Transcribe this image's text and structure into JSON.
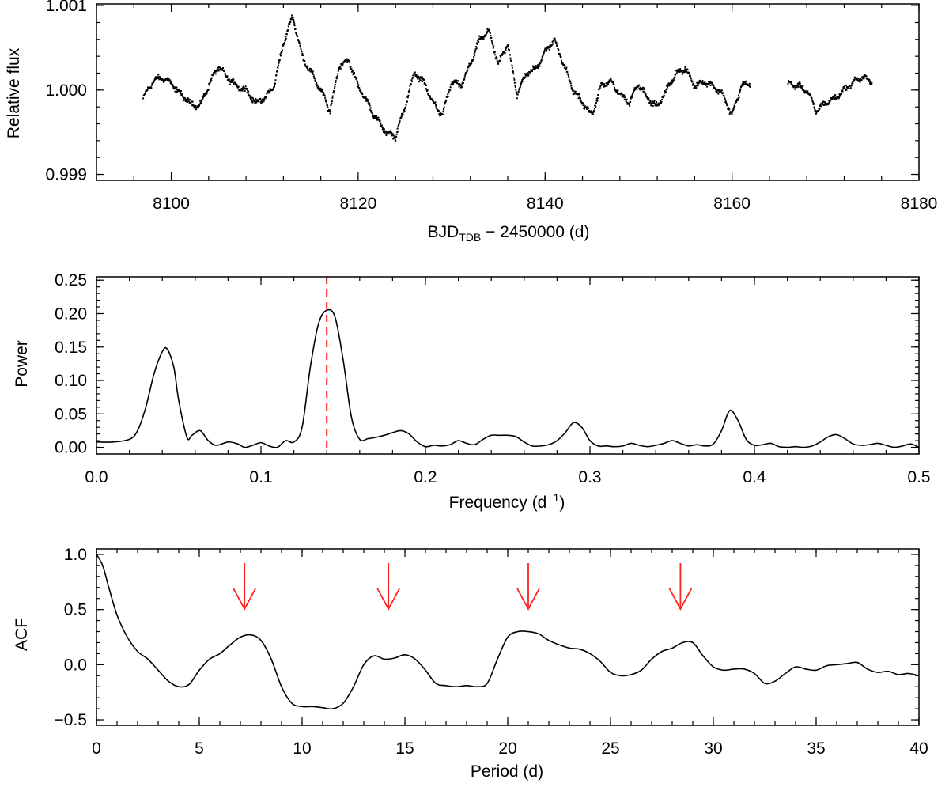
{
  "chart_data": [
    {
      "type": "scatter",
      "id": "lightcurve",
      "title": "",
      "xlabel_main": "BJD",
      "xlabel_sub": "TDB",
      "xlabel_rest": " − 2450000 (d)",
      "ylabel": "Relative flux",
      "xlim": [
        8092,
        8180
      ],
      "ylim": [
        0.99893,
        1.00102
      ],
      "xticks": [
        8100,
        8120,
        8140,
        8160,
        8180
      ],
      "xtick_labels": [
        "8100",
        "8120",
        "8140",
        "8160",
        "8180"
      ],
      "yticks": [
        0.999,
        1.0,
        1.001
      ],
      "ytick_labels": [
        "0.999",
        "1.000",
        "1.001"
      ],
      "gap": [
        8162,
        8166
      ],
      "trend_x": [
        8097,
        8098,
        8099,
        8100,
        8101,
        8102,
        8103,
        8104,
        8105,
        8106,
        8107,
        8108,
        8109,
        8110,
        8111,
        8112,
        8113,
        8114,
        8115,
        8116,
        8117,
        8118,
        8119,
        8120,
        8121,
        8122,
        8123,
        8124,
        8125,
        8126,
        8127,
        8128,
        8129,
        8130,
        8131,
        8132,
        8133,
        8134,
        8135,
        8136,
        8137,
        8138,
        8139,
        8140,
        8141,
        8142,
        8143,
        8144,
        8145,
        8146,
        8147,
        8148,
        8149,
        8150,
        8151,
        8152,
        8153,
        8154,
        8155,
        8156,
        8157,
        8158,
        8159,
        8160,
        8161,
        8162,
        8166,
        8167,
        8168,
        8169,
        8170,
        8171,
        8172,
        8173,
        8174,
        8175
      ],
      "trend_y": [
        0.9999,
        1.0001,
        1.00015,
        1.00008,
        0.99995,
        0.99985,
        0.9998,
        1.00005,
        1.00028,
        1.00015,
        1.00005,
        1.0,
        0.99985,
        0.9999,
        1.00005,
        1.00055,
        1.00088,
        1.0004,
        1.0002,
        1.0,
        0.99975,
        1.0003,
        1.00035,
        1.00005,
        0.99985,
        0.99965,
        0.9995,
        0.99945,
        0.9998,
        1.0002,
        1.0001,
        0.99985,
        0.9997,
        1.0001,
        1.00005,
        1.0003,
        1.0006,
        1.0007,
        1.0003,
        1.00055,
        0.99995,
        1.0002,
        1.00025,
        1.00045,
        1.0006,
        1.0003,
        1.0,
        0.99985,
        0.9997,
        1.00005,
        1.0001,
        0.99995,
        0.99985,
        1.00008,
        0.9999,
        0.9998,
        1.0,
        1.0002,
        1.00025,
        1.00005,
        1.0001,
        1.00005,
        0.99995,
        0.9997,
        1.00005,
        1.00008,
        1.00008,
        1.00005,
        1.0,
        0.99975,
        0.99985,
        0.9999,
        1.0,
        1.0001,
        1.00015,
        1.0001
      ],
      "points_per_day": 24,
      "scatter_amplitude": 4e-05
    },
    {
      "type": "line",
      "id": "periodogram",
      "title": "",
      "xlabel": "Frequency (d",
      "xlabel_exp": "−1",
      "xlabel_close": ")",
      "ylabel": "Power",
      "xlim": [
        0.0,
        0.5
      ],
      "ylim": [
        -0.01,
        0.255
      ],
      "xticks": [
        0.0,
        0.1,
        0.2,
        0.3,
        0.4,
        0.5
      ],
      "xtick_labels": [
        "0.0",
        "0.1",
        "0.2",
        "0.3",
        "0.4",
        "0.5"
      ],
      "yticks": [
        0.0,
        0.05,
        0.1,
        0.15,
        0.2,
        0.25
      ],
      "ytick_labels": [
        "0.00",
        "0.05",
        "0.10",
        "0.15",
        "0.20",
        "0.25"
      ],
      "peak_marker_x": 0.14,
      "x": [
        0.0,
        0.01,
        0.02,
        0.025,
        0.03,
        0.035,
        0.04,
        0.043,
        0.047,
        0.05,
        0.055,
        0.058,
        0.063,
        0.068,
        0.073,
        0.08,
        0.086,
        0.09,
        0.095,
        0.1,
        0.105,
        0.11,
        0.115,
        0.12,
        0.125,
        0.13,
        0.135,
        0.14,
        0.145,
        0.15,
        0.155,
        0.16,
        0.165,
        0.17,
        0.175,
        0.18,
        0.185,
        0.19,
        0.195,
        0.2,
        0.205,
        0.21,
        0.215,
        0.22,
        0.225,
        0.23,
        0.235,
        0.24,
        0.245,
        0.25,
        0.255,
        0.26,
        0.265,
        0.27,
        0.275,
        0.28,
        0.285,
        0.29,
        0.295,
        0.3,
        0.305,
        0.31,
        0.315,
        0.32,
        0.325,
        0.33,
        0.335,
        0.34,
        0.345,
        0.35,
        0.355,
        0.36,
        0.365,
        0.37,
        0.375,
        0.38,
        0.385,
        0.39,
        0.395,
        0.4,
        0.405,
        0.41,
        0.415,
        0.42,
        0.425,
        0.43,
        0.435,
        0.44,
        0.445,
        0.45,
        0.455,
        0.46,
        0.465,
        0.47,
        0.475,
        0.48,
        0.485,
        0.49,
        0.495,
        0.5
      ],
      "y": [
        0.008,
        0.008,
        0.012,
        0.025,
        0.06,
        0.11,
        0.143,
        0.147,
        0.12,
        0.07,
        0.015,
        0.018,
        0.025,
        0.01,
        0.003,
        0.008,
        0.005,
        0.0,
        0.003,
        0.007,
        0.002,
        0.0,
        0.01,
        0.008,
        0.03,
        0.12,
        0.185,
        0.205,
        0.195,
        0.13,
        0.045,
        0.012,
        0.013,
        0.015,
        0.018,
        0.022,
        0.025,
        0.02,
        0.008,
        0.001,
        0.003,
        0.002,
        0.004,
        0.01,
        0.006,
        0.004,
        0.012,
        0.018,
        0.018,
        0.018,
        0.016,
        0.008,
        0.002,
        0.002,
        0.004,
        0.01,
        0.022,
        0.037,
        0.03,
        0.01,
        0.002,
        0.002,
        0.001,
        0.002,
        0.006,
        0.003,
        0.001,
        0.003,
        0.006,
        0.01,
        0.006,
        0.002,
        0.004,
        0.002,
        0.005,
        0.025,
        0.055,
        0.04,
        0.012,
        0.003,
        0.004,
        0.006,
        0.001,
        0.0,
        0.001,
        0.0,
        0.002,
        0.008,
        0.016,
        0.019,
        0.013,
        0.005,
        0.003,
        0.004,
        0.006,
        0.003,
        0.0,
        0.002,
        0.005,
        0.0
      ]
    },
    {
      "type": "line",
      "id": "acf",
      "title": "",
      "xlabel": "Period (d)",
      "ylabel": "ACF",
      "xlim": [
        0,
        40
      ],
      "ylim": [
        -0.55,
        1.05
      ],
      "xticks": [
        0,
        5,
        10,
        15,
        20,
        25,
        30,
        35,
        40
      ],
      "xtick_labels": [
        "0",
        "5",
        "10",
        "15",
        "20",
        "25",
        "30",
        "35",
        "40"
      ],
      "yticks": [
        -0.5,
        0.0,
        0.5,
        1.0
      ],
      "ytick_labels": [
        "−0.5",
        "0.0",
        "0.5",
        "1.0"
      ],
      "arrow_x": [
        7.2,
        14.2,
        21.0,
        28.4
      ],
      "x": [
        0.0,
        0.3,
        0.6,
        1.0,
        1.5,
        2.0,
        2.5,
        3.0,
        3.5,
        4.0,
        4.5,
        5.0,
        5.5,
        6.0,
        6.5,
        7.0,
        7.5,
        8.0,
        8.5,
        9.0,
        9.5,
        10.0,
        10.5,
        11.0,
        11.5,
        12.0,
        12.5,
        13.0,
        13.5,
        14.0,
        14.5,
        15.0,
        15.5,
        16.0,
        16.5,
        17.0,
        17.5,
        18.0,
        18.5,
        19.0,
        19.5,
        20.0,
        20.5,
        21.0,
        21.5,
        22.0,
        22.5,
        23.0,
        23.5,
        24.0,
        24.5,
        25.0,
        25.5,
        26.0,
        26.5,
        27.0,
        27.5,
        28.0,
        28.5,
        29.0,
        29.5,
        30.0,
        30.5,
        31.0,
        31.5,
        32.0,
        32.5,
        33.0,
        33.5,
        34.0,
        34.5,
        35.0,
        35.5,
        36.0,
        36.5,
        37.0,
        37.5,
        38.0,
        38.5,
        39.0,
        39.5,
        40.0
      ],
      "y": [
        1.0,
        0.9,
        0.7,
        0.45,
        0.25,
        0.12,
        0.05,
        -0.05,
        -0.15,
        -0.2,
        -0.18,
        -0.05,
        0.05,
        0.1,
        0.18,
        0.25,
        0.27,
        0.22,
        0.05,
        -0.2,
        -0.35,
        -0.38,
        -0.38,
        -0.39,
        -0.4,
        -0.35,
        -0.2,
        0.0,
        0.08,
        0.05,
        0.06,
        0.09,
        0.05,
        -0.05,
        -0.17,
        -0.19,
        -0.2,
        -0.19,
        -0.2,
        -0.17,
        0.05,
        0.25,
        0.3,
        0.3,
        0.28,
        0.22,
        0.18,
        0.15,
        0.14,
        0.1,
        0.03,
        -0.07,
        -0.1,
        -0.09,
        -0.05,
        0.05,
        0.12,
        0.15,
        0.2,
        0.2,
        0.08,
        -0.02,
        -0.05,
        -0.04,
        -0.04,
        -0.08,
        -0.17,
        -0.15,
        -0.08,
        -0.02,
        -0.04,
        -0.05,
        -0.01,
        0.0,
        0.01,
        0.02,
        -0.04,
        -0.07,
        -0.06,
        -0.09,
        -0.08,
        -0.1
      ]
    }
  ]
}
